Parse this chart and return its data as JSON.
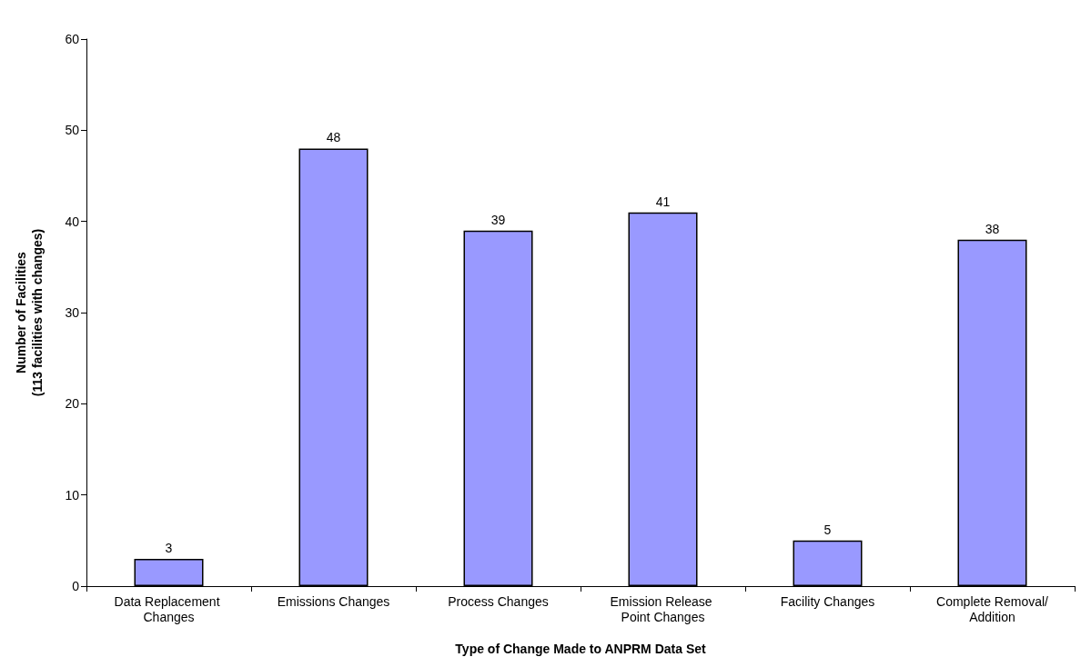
{
  "chart_data": {
    "type": "bar",
    "xlabel": "Type of Change Made to ANPRM Data Set",
    "ylabel": "Number of Facilities\n(113 facilities with changes)",
    "categories": [
      "Data Replacement Changes",
      "Emissions Changes",
      "Process Changes",
      "Emission Release Point Changes",
      "Facility Changes",
      "Complete Removal/Addition"
    ],
    "values": [
      3,
      48,
      39,
      41,
      5,
      38
    ],
    "color": "#9999ff",
    "ylim": [
      0,
      60
    ],
    "yticks": [
      0,
      10,
      20,
      30,
      40,
      50,
      60
    ],
    "grid": false,
    "data_labels": true
  }
}
